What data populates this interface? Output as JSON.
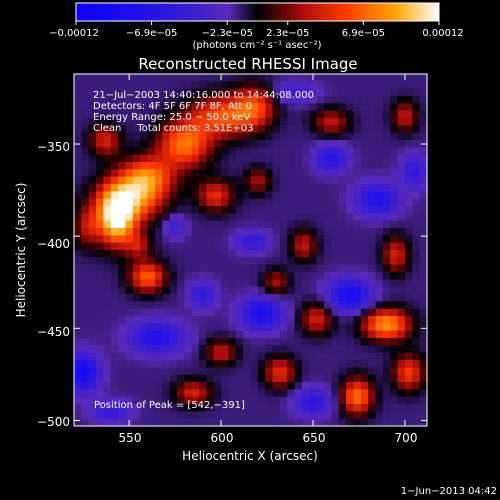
{
  "chart_data": {
    "type": "heatmap",
    "title": "Reconstructed RHESSI Image",
    "xlabel": "Heliocentric X (arcsec)",
    "ylabel": "Heliocentric Y (arcsec)",
    "xlim": [
      520,
      712
    ],
    "ylim": [
      -503,
      -312
    ],
    "x_ticks": [
      550,
      600,
      650,
      700
    ],
    "y_ticks": [
      -350,
      -400,
      -450,
      -500
    ],
    "x_tick_labels": [
      "550",
      "600",
      "650",
      "700"
    ],
    "y_tick_labels": [
      "−350",
      "−400",
      "−450",
      "−500"
    ],
    "colorbar": {
      "range": [
        -0.00012,
        0.00012
      ],
      "tick_labels": [
        "−0.00012",
        "−6.9e−05",
        "−2.3e−05",
        "2.3e−05",
        "6.9e−05",
        "0.00012"
      ],
      "unit_label": "(photons cm⁻² s⁻¹ asec⁻²)"
    },
    "info_lines": [
      "21−Jul−2003 14:40:16.000 to 14:44:08.000",
      "Detectors: 4F 5F 6F 7F 8F, Att 0",
      "Energy Range: 25.0 − 50.0 keV",
      "Clean     Total counts: 3.51E+03"
    ],
    "peak_label": "Position of Peak = [542,−391]",
    "peak_position": [
      542,
      -391
    ],
    "blobs": [
      {
        "x": 543,
        "y": -391,
        "amp": 1.0,
        "sx": 7,
        "sy": 10
      },
      {
        "x": 550,
        "y": -380,
        "amp": 0.75,
        "sx": 12,
        "sy": 9
      },
      {
        "x": 560,
        "y": -368,
        "amp": 0.65,
        "sx": 10,
        "sy": 8
      },
      {
        "x": 580,
        "y": -350,
        "amp": 0.7,
        "sx": 10,
        "sy": 9
      },
      {
        "x": 600,
        "y": -335,
        "amp": 0.6,
        "sx": 12,
        "sy": 8
      },
      {
        "x": 618,
        "y": -330,
        "amp": 0.55,
        "sx": 8,
        "sy": 8
      },
      {
        "x": 597,
        "y": -378,
        "amp": 0.5,
        "sx": 7,
        "sy": 6
      },
      {
        "x": 537,
        "y": -348,
        "amp": 0.45,
        "sx": 6,
        "sy": 6
      },
      {
        "x": 560,
        "y": -422,
        "amp": 0.65,
        "sx": 7,
        "sy": 6
      },
      {
        "x": 527,
        "y": -395,
        "amp": 0.35,
        "sx": 5,
        "sy": 8
      },
      {
        "x": 555,
        "y": -405,
        "amp": 0.35,
        "sx": 5,
        "sy": 5
      },
      {
        "x": 690,
        "y": -448,
        "amp": 0.8,
        "sx": 9,
        "sy": 6
      },
      {
        "x": 674,
        "y": -487,
        "amp": 0.7,
        "sx": 6,
        "sy": 7
      },
      {
        "x": 702,
        "y": -474,
        "amp": 0.55,
        "sx": 6,
        "sy": 7
      },
      {
        "x": 632,
        "y": -474,
        "amp": 0.5,
        "sx": 6,
        "sy": 6
      },
      {
        "x": 600,
        "y": -463,
        "amp": 0.4,
        "sx": 6,
        "sy": 5
      },
      {
        "x": 585,
        "y": -485,
        "amp": 0.45,
        "sx": 7,
        "sy": 5
      },
      {
        "x": 652,
        "y": -445,
        "amp": 0.45,
        "sx": 6,
        "sy": 6
      },
      {
        "x": 695,
        "y": -410,
        "amp": 0.45,
        "sx": 5,
        "sy": 7
      },
      {
        "x": 645,
        "y": -405,
        "amp": 0.4,
        "sx": 5,
        "sy": 6
      },
      {
        "x": 660,
        "y": -338,
        "amp": 0.4,
        "sx": 7,
        "sy": 5
      },
      {
        "x": 700,
        "y": -335,
        "amp": 0.4,
        "sx": 5,
        "sy": 6
      },
      {
        "x": 630,
        "y": -425,
        "amp": 0.35,
        "sx": 5,
        "sy": 5
      },
      {
        "x": 620,
        "y": -370,
        "amp": 0.35,
        "sx": 5,
        "sy": 5
      },
      {
        "x": 565,
        "y": -455,
        "amp": -0.55,
        "sx": 10,
        "sy": 6
      },
      {
        "x": 622,
        "y": -442,
        "amp": -0.6,
        "sx": 8,
        "sy": 6
      },
      {
        "x": 670,
        "y": -432,
        "amp": -0.65,
        "sx": 8,
        "sy": 6
      },
      {
        "x": 685,
        "y": -380,
        "amp": -0.55,
        "sx": 8,
        "sy": 6
      },
      {
        "x": 660,
        "y": -358,
        "amp": -0.5,
        "sx": 6,
        "sy": 5
      },
      {
        "x": 525,
        "y": -474,
        "amp": -0.7,
        "sx": 6,
        "sy": 7
      },
      {
        "x": 540,
        "y": -495,
        "amp": -0.4,
        "sx": 7,
        "sy": 4
      },
      {
        "x": 617,
        "y": -403,
        "amp": -0.4,
        "sx": 6,
        "sy": 4
      },
      {
        "x": 590,
        "y": -432,
        "amp": -0.4,
        "sx": 5,
        "sy": 5
      },
      {
        "x": 650,
        "y": -490,
        "amp": -0.45,
        "sx": 7,
        "sy": 5
      },
      {
        "x": 705,
        "y": -365,
        "amp": -0.4,
        "sx": 5,
        "sy": 6
      },
      {
        "x": 640,
        "y": -322,
        "amp": -0.3,
        "sx": 8,
        "sy": 4
      },
      {
        "x": 575,
        "y": -395,
        "amp": -0.3,
        "sx": 4,
        "sy": 4
      }
    ]
  },
  "footer": {
    "timestamp": "1−Jun−2013 04:42"
  },
  "colors": {
    "background": "#000000",
    "foreground": "#ffffff"
  }
}
